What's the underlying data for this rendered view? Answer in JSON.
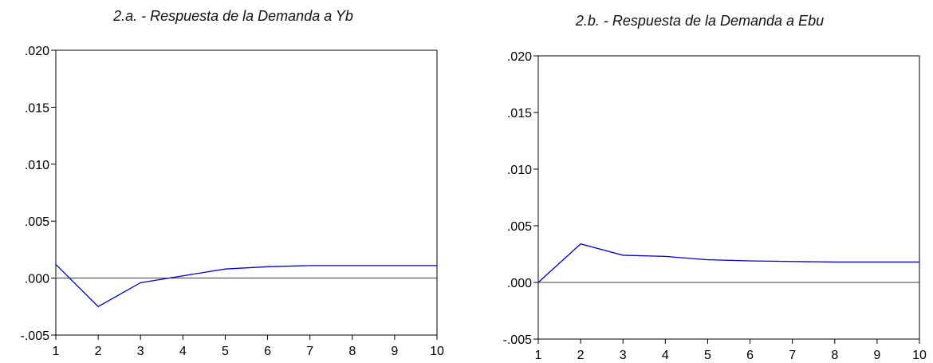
{
  "chart_data": [
    {
      "type": "line",
      "title": "2.a. - Respuesta de la Demanda a Yb",
      "xlabel": "",
      "ylabel": "",
      "x": [
        1,
        2,
        3,
        4,
        5,
        6,
        7,
        8,
        9,
        10
      ],
      "series": [
        {
          "values": [
            0.0012,
            -0.0025,
            -0.0004,
            0.0002,
            0.0008,
            0.001,
            0.0011,
            0.0011,
            0.0011,
            0.0011
          ],
          "color": "#0000cc"
        }
      ],
      "xlim": [
        1,
        10
      ],
      "ylim": [
        -0.005,
        0.02
      ],
      "y_ticks": [
        -0.005,
        0.0,
        0.005,
        0.01,
        0.015,
        0.02
      ],
      "y_tick_labels": [
        "-.005",
        ".000",
        ".005",
        ".010",
        ".015",
        ".020"
      ],
      "x_tick_labels": [
        "1",
        "2",
        "3",
        "4",
        "5",
        "6",
        "7",
        "8",
        "9",
        "10"
      ],
      "zero_line": true,
      "grid": false
    },
    {
      "type": "line",
      "title": "2.b. - Respuesta de la Demanda a Ebu",
      "xlabel": "",
      "ylabel": "",
      "x": [
        1,
        2,
        3,
        4,
        5,
        6,
        7,
        8,
        9,
        10
      ],
      "series": [
        {
          "values": [
            0.0,
            0.0034,
            0.0024,
            0.0023,
            0.002,
            0.0019,
            0.00185,
            0.0018,
            0.0018,
            0.0018
          ],
          "color": "#0000cc"
        }
      ],
      "xlim": [
        1,
        10
      ],
      "ylim": [
        -0.005,
        0.02
      ],
      "y_ticks": [
        -0.005,
        0.0,
        0.005,
        0.01,
        0.015,
        0.02
      ],
      "y_tick_labels": [
        "-.005",
        ".000",
        ".005",
        ".010",
        ".015",
        ".020"
      ],
      "x_tick_labels": [
        "1",
        "2",
        "3",
        "4",
        "5",
        "6",
        "7",
        "8",
        "9",
        "10"
      ],
      "zero_line": true,
      "grid": false
    }
  ]
}
